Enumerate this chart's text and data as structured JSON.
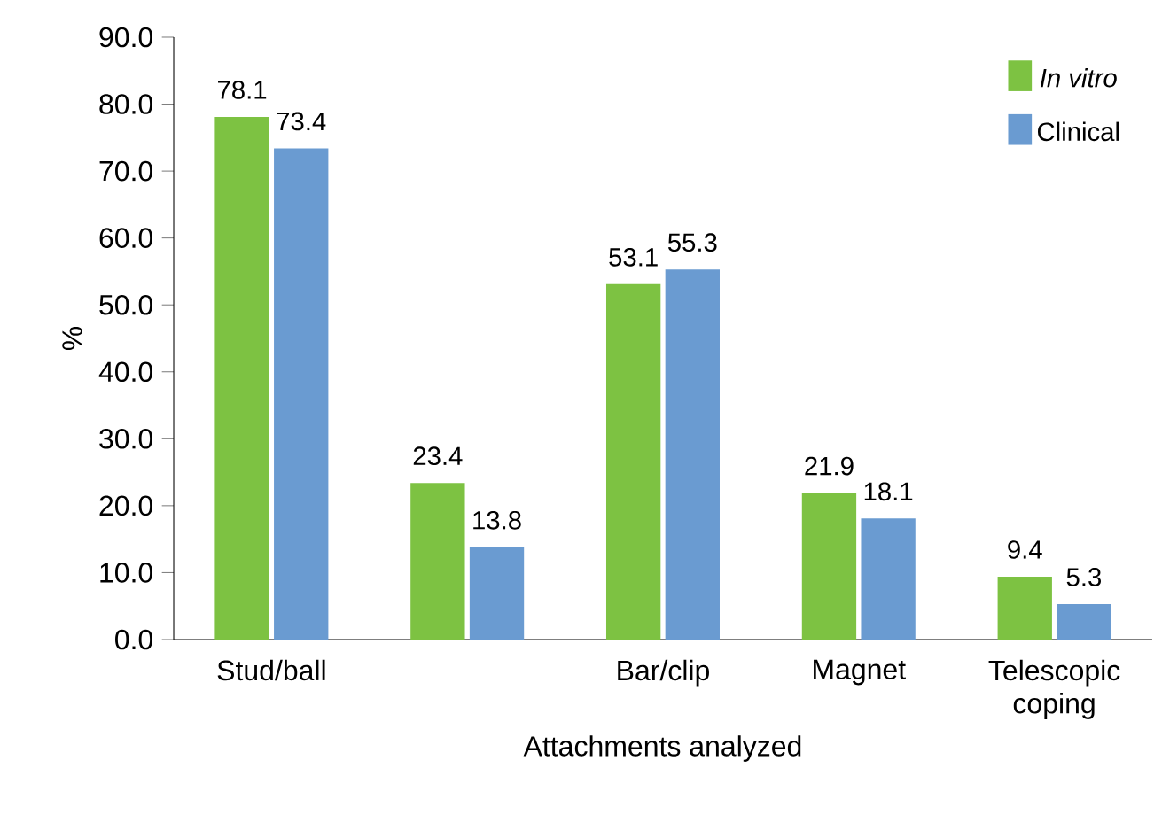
{
  "chart_data": {
    "type": "bar",
    "xlabel": "Attachments analyzed",
    "ylabel": "%",
    "categories": [
      "Stud/ball",
      null,
      "Bar/clip",
      "Magnet",
      "Telescopic coping"
    ],
    "series": [
      {
        "name": "*In vitro*",
        "color": "#7dc242",
        "values": [
          78.1,
          23.4,
          53.1,
          21.9,
          9.4
        ]
      },
      {
        "name": "Clinical",
        "color": "#6a9bd1",
        "values": [
          73.4,
          13.8,
          55.3,
          18.1,
          5.3
        ]
      }
    ],
    "ylim": [
      0,
      90
    ],
    "yticks": [
      {
        "value": 0,
        "label": "0.0"
      },
      {
        "value": 10,
        "label": "10.0"
      },
      {
        "value": 20,
        "label": "20.0"
      },
      {
        "value": 30,
        "label": "30.0"
      },
      {
        "value": 40,
        "label": "40.0"
      },
      {
        "value": 50,
        "label": "50.0"
      },
      {
        "value": 60,
        "label": "60.0"
      },
      {
        "value": 70,
        "label": "70.0"
      },
      {
        "value": 80,
        "label": "80.0"
      },
      {
        "value": 90,
        "label": "90.0"
      }
    ],
    "data_labels": true,
    "legend": "top right",
    "grid": false
  }
}
